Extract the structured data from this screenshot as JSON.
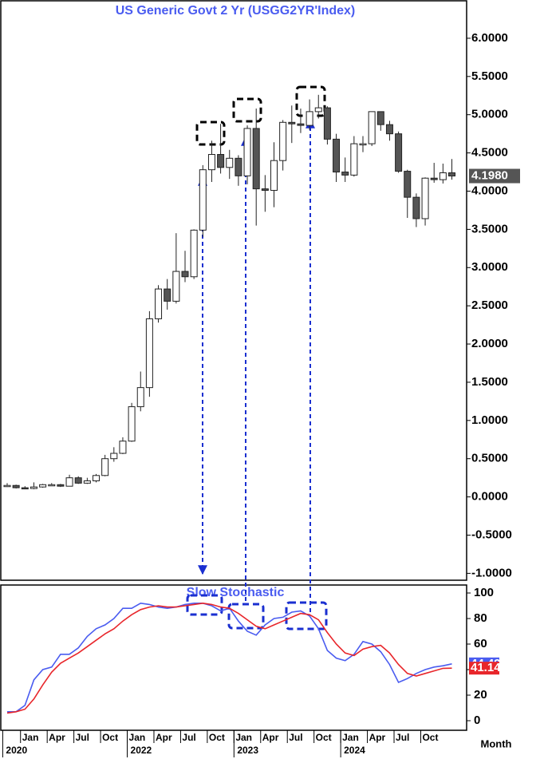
{
  "chart_data": [
    {
      "type": "candlestick",
      "title": "US Generic Govt 2 Yr (USGG2YR'Index)",
      "x": [
        "2020-11",
        "2020-12",
        "2021-01",
        "2021-02",
        "2021-03",
        "2021-04",
        "2021-05",
        "2021-06",
        "2021-07",
        "2021-08",
        "2021-09",
        "2021-10",
        "2021-11",
        "2021-12",
        "2022-01",
        "2022-02",
        "2022-03",
        "2022-04",
        "2022-05",
        "2022-06",
        "2022-07",
        "2022-08",
        "2022-09",
        "2022-10",
        "2022-11",
        "2022-12",
        "2023-01",
        "2023-02",
        "2023-03",
        "2023-04",
        "2023-05",
        "2023-06",
        "2023-07",
        "2023-08",
        "2023-09",
        "2023-10",
        "2023-11",
        "2023-12",
        "2024-01",
        "2024-02",
        "2024-03",
        "2024-04",
        "2024-05",
        "2024-06",
        "2024-07",
        "2024-08",
        "2024-09",
        "2024-10",
        "2024-11",
        "2024-12",
        "2025-01"
      ],
      "open": [
        0.15,
        0.15,
        0.12,
        0.11,
        0.13,
        0.16,
        0.16,
        0.14,
        0.25,
        0.18,
        0.21,
        0.28,
        0.5,
        0.57,
        0.73,
        1.18,
        1.43,
        2.33,
        2.72,
        2.56,
        2.95,
        2.88,
        3.49,
        4.28,
        4.48,
        4.31,
        4.43,
        4.2,
        4.82,
        4.03,
        4.01,
        4.4,
        4.9,
        4.88,
        4.86,
        5.04,
        5.09,
        4.68,
        4.25,
        4.21,
        4.62,
        4.62,
        5.04,
        4.87,
        4.75,
        4.26,
        3.92,
        3.64,
        4.17,
        4.15,
        4.24
      ],
      "high": [
        0.18,
        0.16,
        0.14,
        0.19,
        0.17,
        0.18,
        0.17,
        0.29,
        0.27,
        0.25,
        0.3,
        0.55,
        0.65,
        0.78,
        1.23,
        1.64,
        2.43,
        2.77,
        2.85,
        3.45,
        3.22,
        3.5,
        4.34,
        4.66,
        4.88,
        4.54,
        4.47,
        4.86,
        5.08,
        4.21,
        4.64,
        4.93,
        5.12,
        5.08,
        5.2,
        5.26,
        5.11,
        4.75,
        4.44,
        4.72,
        4.72,
        5.04,
        5.04,
        4.92,
        4.78,
        4.28,
        3.97,
        4.18,
        4.37,
        4.36,
        4.42
      ],
      "low": [
        0.13,
        0.11,
        0.1,
        0.1,
        0.12,
        0.15,
        0.13,
        0.14,
        0.17,
        0.17,
        0.19,
        0.27,
        0.46,
        0.56,
        0.72,
        1.12,
        1.31,
        2.28,
        2.45,
        2.53,
        2.81,
        2.85,
        3.4,
        4.12,
        4.23,
        4.16,
        4.07,
        4.09,
        3.55,
        3.73,
        3.79,
        4.27,
        4.63,
        4.76,
        4.8,
        4.95,
        4.61,
        4.12,
        4.12,
        4.19,
        4.51,
        4.59,
        4.79,
        4.66,
        4.24,
        3.65,
        3.53,
        3.55,
        4.11,
        4.1,
        4.15
      ],
      "close": [
        0.15,
        0.12,
        0.11,
        0.13,
        0.16,
        0.16,
        0.14,
        0.25,
        0.18,
        0.21,
        0.28,
        0.5,
        0.57,
        0.73,
        1.18,
        1.43,
        2.33,
        2.72,
        2.56,
        2.95,
        2.88,
        3.49,
        4.28,
        4.48,
        4.31,
        4.43,
        4.2,
        4.82,
        4.03,
        4.01,
        4.4,
        4.9,
        4.88,
        4.86,
        5.04,
        5.09,
        4.68,
        4.25,
        4.21,
        4.62,
        4.62,
        5.04,
        4.87,
        4.75,
        4.26,
        3.92,
        3.64,
        4.17,
        4.15,
        4.24,
        4.198
      ],
      "up_color": "#ffffff",
      "down_color": "#555555",
      "last_price_label": {
        "value": 4.198,
        "label": "4.1980"
      },
      "ylim": [
        -1.09,
        6.49
      ],
      "yticks": [
        {
          "value": 6,
          "label": "6.0000"
        },
        {
          "value": 5.5,
          "label": "5.5000"
        },
        {
          "value": 5,
          "label": "5.0000"
        },
        {
          "value": 4.5,
          "label": "4.5000"
        },
        {
          "value": 4,
          "label": "4.0000"
        },
        {
          "value": 3.5,
          "label": "3.5000"
        },
        {
          "value": 3,
          "label": "3.0000"
        },
        {
          "value": 2.5,
          "label": "2.5000"
        },
        {
          "value": 2,
          "label": "2.0000"
        },
        {
          "value": 1.5,
          "label": "1.5000"
        },
        {
          "value": 1,
          "label": "1.0000"
        },
        {
          "value": 0.5,
          "label": "0.5000"
        },
        {
          "value": 0,
          "label": "0.0000"
        },
        {
          "value": -0.5,
          "label": "-0.5000"
        },
        {
          "value": -1,
          "label": "-1.0000"
        }
      ]
    },
    {
      "type": "line",
      "title": "Slow Stochastic",
      "x": [
        "2020-11",
        "2020-12",
        "2021-01",
        "2021-02",
        "2021-03",
        "2021-04",
        "2021-05",
        "2021-06",
        "2021-07",
        "2021-08",
        "2021-09",
        "2021-10",
        "2021-11",
        "2021-12",
        "2022-01",
        "2022-02",
        "2022-03",
        "2022-04",
        "2022-05",
        "2022-06",
        "2022-07",
        "2022-08",
        "2022-09",
        "2022-10",
        "2022-11",
        "2022-12",
        "2023-01",
        "2023-02",
        "2023-03",
        "2023-04",
        "2023-05",
        "2023-06",
        "2023-07",
        "2023-08",
        "2023-09",
        "2023-10",
        "2023-11",
        "2023-12",
        "2024-01",
        "2024-02",
        "2024-03",
        "2024-04",
        "2024-05",
        "2024-06",
        "2024-07",
        "2024-08",
        "2024-09",
        "2024-10",
        "2024-11",
        "2024-12",
        "2025-01"
      ],
      "series": [
        {
          "color": "#4a5cf0",
          "last_label": "44.49",
          "values": [
            7,
            7,
            12,
            32,
            40,
            42,
            52,
            52,
            57,
            66,
            72,
            75,
            80,
            88,
            88,
            92,
            91,
            89,
            88,
            89,
            91,
            92,
            92,
            90,
            86,
            88,
            78,
            70,
            67,
            75,
            80,
            81,
            85,
            86,
            82,
            72,
            55,
            49,
            47,
            52,
            62,
            60,
            54,
            44,
            30,
            33,
            37,
            40,
            42,
            43,
            44.49
          ]
        },
        {
          "color": "#e8262b",
          "last_label": "41.14",
          "values": [
            6,
            7,
            9,
            17,
            28,
            38,
            45,
            49,
            53,
            58,
            63,
            68,
            72,
            78,
            83,
            87,
            89,
            90,
            89,
            89,
            90,
            91,
            92,
            91,
            89,
            88,
            84,
            79,
            74,
            72,
            75,
            78,
            81,
            84,
            83,
            79,
            69,
            60,
            53,
            51,
            56,
            58,
            59,
            53,
            44,
            37,
            35,
            37,
            39,
            41,
            41.14
          ]
        }
      ],
      "ylim": [
        -7.5,
        106.25
      ],
      "yticks": [
        0,
        20,
        40,
        60,
        80,
        100
      ],
      "xticks": [
        {
          "value": "2021-01",
          "label": "Jan"
        },
        {
          "value": "2021-04",
          "label": "Apr"
        },
        {
          "value": "2021-07",
          "label": "Jul"
        },
        {
          "value": "2021-10",
          "label": "Oct"
        },
        {
          "value": "2022-01",
          "label": "Jan"
        },
        {
          "value": "2022-04",
          "label": "Apr"
        },
        {
          "value": "2022-07",
          "label": "Jul"
        },
        {
          "value": "2022-10",
          "label": "Oct"
        },
        {
          "value": "2023-01",
          "label": "Jan"
        },
        {
          "value": "2023-04",
          "label": "Apr"
        },
        {
          "value": "2023-07",
          "label": "Jul"
        },
        {
          "value": "2023-10",
          "label": "Oct"
        },
        {
          "value": "2024-01",
          "label": "Jan"
        },
        {
          "value": "2024-04",
          "label": "Apr"
        },
        {
          "value": "2024-07",
          "label": "Jul"
        },
        {
          "value": "2024-10",
          "label": "Oct"
        }
      ],
      "year_ticks": [
        {
          "value": "2020-11",
          "label": "2020"
        },
        {
          "value": "2022-01",
          "label": "2022"
        },
        {
          "value": "2023-01",
          "label": "2023"
        },
        {
          "value": "2024-01",
          "label": "2024"
        }
      ],
      "x_axis_label": "Month"
    }
  ]
}
